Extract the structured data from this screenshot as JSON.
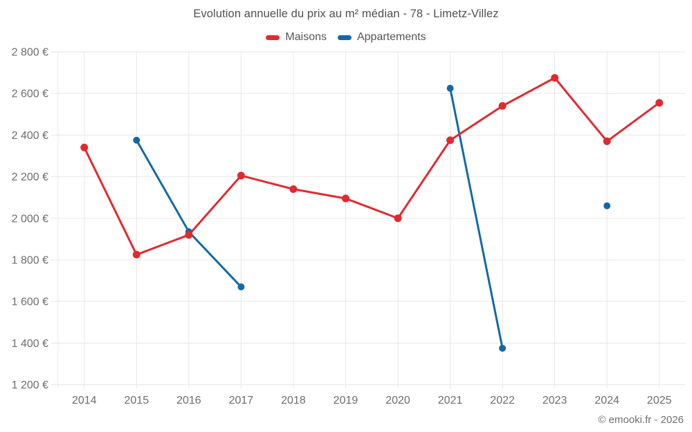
{
  "chart_data": {
    "type": "line",
    "title": "Evolution annuelle du prix au m² médian - 78 - Limetz-Villez",
    "x": [
      "2014",
      "2015",
      "2016",
      "2017",
      "2018",
      "2019",
      "2020",
      "2021",
      "2022",
      "2023",
      "2024",
      "2025"
    ],
    "series": [
      {
        "name": "Maisons",
        "color": "#e02a30",
        "values": [
          2340,
          1825,
          1920,
          2205,
          2140,
          2095,
          2000,
          2375,
          2540,
          2675,
          2370,
          2555
        ]
      },
      {
        "name": "Appartements",
        "color": "#1169a8",
        "values": [
          null,
          2375,
          1935,
          1670,
          null,
          null,
          null,
          2625,
          1375,
          null,
          2060,
          null
        ]
      }
    ],
    "ylim": [
      1200,
      2800
    ],
    "yticks": [
      {
        "value": 2800,
        "label": "2 800 €"
      },
      {
        "value": 2600,
        "label": "2 600 €"
      },
      {
        "value": 2400,
        "label": "2 400 €"
      },
      {
        "value": 2200,
        "label": "2 200 €"
      },
      {
        "value": 2000,
        "label": "2 000 €"
      },
      {
        "value": 1800,
        "label": "1 800 €"
      },
      {
        "value": 1600,
        "label": "1 600 €"
      },
      {
        "value": 1400,
        "label": "1 400 €"
      },
      {
        "value": 1200,
        "label": "1 200 €"
      }
    ],
    "xlabel": "",
    "ylabel": "",
    "grid": true,
    "legend_position": "top",
    "copyright": "© emooki.fr - 2026"
  },
  "colors": {
    "background": "#ffffff",
    "grid": "#e7e7e7",
    "title_text": "#4f4f4f",
    "legend_text": "#555555",
    "axis_text": "#6d6d6d",
    "copyright_text": "#6f6f6f"
  }
}
